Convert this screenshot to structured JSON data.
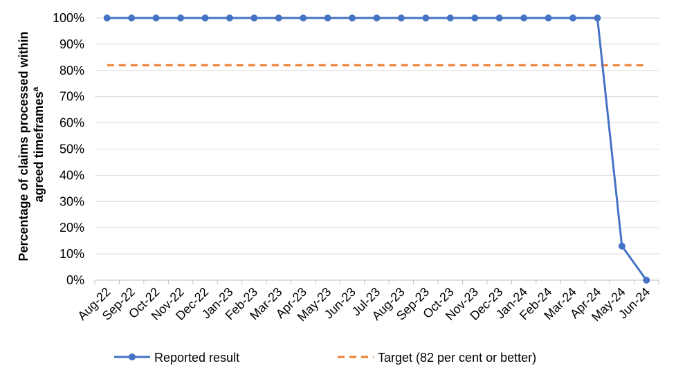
{
  "chart_data": {
    "type": "line",
    "title": "",
    "xlabel": "",
    "ylabel_line1": "Percentage of claims processed within",
    "ylabel_line2": "agreed timeframes",
    "ylabel_superscript": "a",
    "ylim": [
      0,
      100
    ],
    "y_ticks": [
      0,
      10,
      20,
      30,
      40,
      50,
      60,
      70,
      80,
      90,
      100
    ],
    "y_tick_format": "{v}%",
    "grid": true,
    "legend_position": "bottom",
    "categories": [
      "Aug-22",
      "Sep-22",
      "Oct-22",
      "Nov-22",
      "Dec-22",
      "Jan-23",
      "Feb-23",
      "Mar-23",
      "Apr-23",
      "May-23",
      "Jun-23",
      "Jul-23",
      "Aug-23",
      "Sep-23",
      "Oct-23",
      "Nov-23",
      "Dec-23",
      "Jan-24",
      "Feb-24",
      "Mar-24",
      "Apr-24",
      "May-24",
      "Jun-24"
    ],
    "series": [
      {
        "name": "Reported result",
        "color": "#4472C4",
        "style": "solid-markers",
        "values": [
          100,
          100,
          100,
          100,
          100,
          100,
          100,
          100,
          100,
          100,
          100,
          100,
          100,
          100,
          100,
          100,
          100,
          100,
          100,
          100,
          100,
          13,
          0
        ]
      },
      {
        "name": "Target (82 per cent or better)",
        "color": "#ED7D31",
        "style": "dashed",
        "values": [
          82,
          82,
          82,
          82,
          82,
          82,
          82,
          82,
          82,
          82,
          82,
          82,
          82,
          82,
          82,
          82,
          82,
          82,
          82,
          82,
          82,
          82,
          82
        ]
      }
    ]
  }
}
